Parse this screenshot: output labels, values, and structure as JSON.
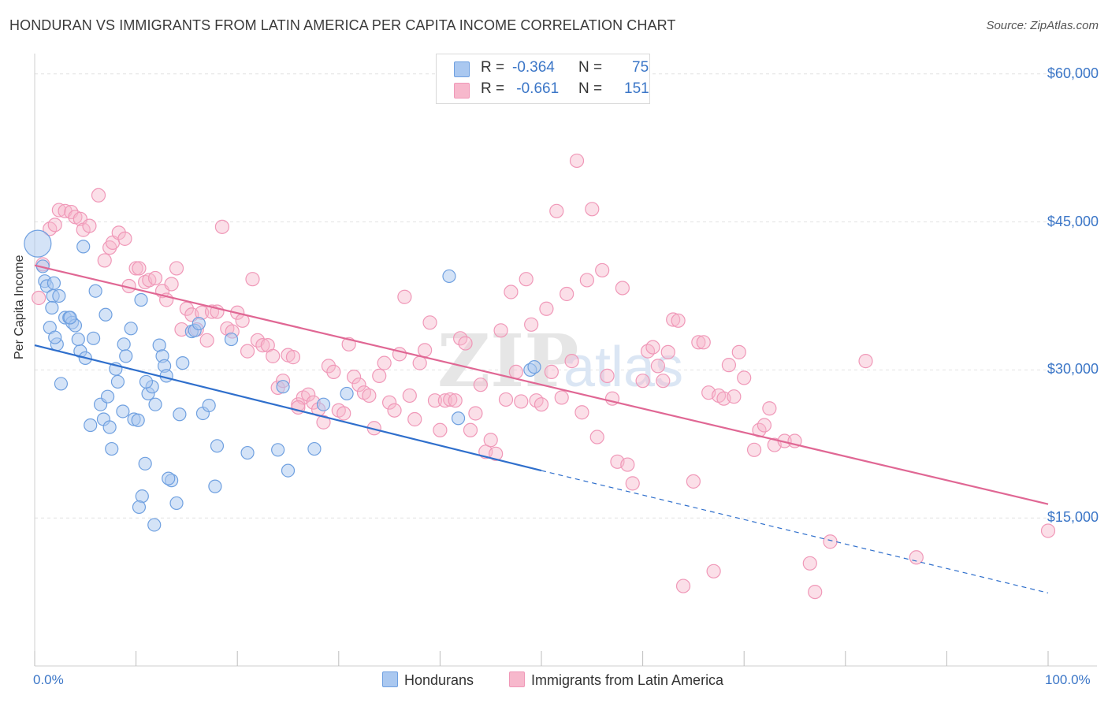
{
  "title": "HONDURAN VS IMMIGRANTS FROM LATIN AMERICA PER CAPITA INCOME CORRELATION CHART",
  "source": "Source: ZipAtlas.com",
  "watermark": "ZIPatlas",
  "legend_box": {
    "rows": [
      {
        "r_label": "R = ",
        "r_value": "-0.364",
        "n_label": "N = ",
        "n_value": "75",
        "color": "#aac8f0"
      },
      {
        "r_label": "R = ",
        "r_value": " -0.661",
        "n_label": "N = ",
        "n_value": "151",
        "color": "#f7b8cc"
      }
    ]
  },
  "bottom_legend": [
    {
      "label": "Hondurans",
      "color": "#aac8f0"
    },
    {
      "label": "Immigrants from Latin America",
      "color": "#f7b8cc"
    }
  ],
  "chart_data": {
    "type": "scatter",
    "title": "HONDURAN VS IMMIGRANTS FROM LATIN AMERICA PER CAPITA INCOME CORRELATION CHART",
    "xlabel": "",
    "ylabel": "Per Capita Income",
    "x_tick_labels": [
      "0.0%",
      "100.0%"
    ],
    "y_tick_labels": [
      "$15,000",
      "$30,000",
      "$45,000",
      "$60,000"
    ],
    "y_ticks": [
      15000,
      30000,
      45000,
      60000
    ],
    "xlim": [
      0,
      100
    ],
    "ylim": [
      0,
      61500
    ],
    "grid": true,
    "legend_position": "top-center",
    "series": [
      {
        "name": "Hondurans",
        "color": "#6fa0e0",
        "line_color": "#2f6fcc",
        "trend": {
          "x0": 0,
          "y0": 32500,
          "x1": 50,
          "y1": 19800,
          "dash_to_x": 100,
          "dash_to_y": 7400
        },
        "points": [
          [
            0.3,
            42800
          ],
          [
            0.8,
            40500
          ],
          [
            1.0,
            39000
          ],
          [
            1.2,
            38500
          ],
          [
            1.8,
            37500
          ],
          [
            1.7,
            36300
          ],
          [
            2.4,
            37500
          ],
          [
            1.5,
            34300
          ],
          [
            2.2,
            32600
          ],
          [
            2.0,
            33300
          ],
          [
            3.0,
            35300
          ],
          [
            3.4,
            35300
          ],
          [
            3.7,
            34800
          ],
          [
            4.0,
            34500
          ],
          [
            4.5,
            31900
          ],
          [
            4.3,
            33100
          ],
          [
            5.0,
            31200
          ],
          [
            5.8,
            33200
          ],
          [
            6.0,
            38000
          ],
          [
            7.0,
            35600
          ],
          [
            4.8,
            42500
          ],
          [
            2.6,
            28600
          ],
          [
            6.5,
            26500
          ],
          [
            6.8,
            25000
          ],
          [
            7.2,
            27300
          ],
          [
            8.0,
            30100
          ],
          [
            8.2,
            28800
          ],
          [
            8.7,
            25800
          ],
          [
            8.8,
            32600
          ],
          [
            9.0,
            31400
          ],
          [
            9.5,
            34200
          ],
          [
            9.8,
            25000
          ],
          [
            10.2,
            24900
          ],
          [
            10.5,
            37100
          ],
          [
            11.2,
            27600
          ],
          [
            11.6,
            28300
          ],
          [
            11.9,
            26500
          ],
          [
            12.3,
            32500
          ],
          [
            12.6,
            31400
          ],
          [
            12.8,
            30400
          ],
          [
            13.0,
            29400
          ],
          [
            13.5,
            18800
          ],
          [
            13.2,
            19000
          ],
          [
            14.0,
            16500
          ],
          [
            14.3,
            25500
          ],
          [
            14.6,
            30700
          ],
          [
            15.5,
            33900
          ],
          [
            15.8,
            34000
          ],
          [
            16.2,
            34700
          ],
          [
            16.6,
            25600
          ],
          [
            17.2,
            26400
          ],
          [
            17.8,
            18200
          ],
          [
            18.0,
            22300
          ],
          [
            19.4,
            33100
          ],
          [
            21.0,
            21600
          ],
          [
            24.0,
            21900
          ],
          [
            25.0,
            19800
          ],
          [
            24.5,
            28300
          ],
          [
            27.6,
            22000
          ],
          [
            30.8,
            27600
          ],
          [
            28.5,
            26500
          ],
          [
            40.9,
            39500
          ],
          [
            41.8,
            25100
          ],
          [
            48.9,
            30000
          ],
          [
            49.3,
            30300
          ],
          [
            10.9,
            20500
          ],
          [
            10.6,
            17200
          ],
          [
            10.3,
            16100
          ],
          [
            11.8,
            14300
          ],
          [
            7.6,
            22000
          ],
          [
            5.5,
            24400
          ],
          [
            7.4,
            24200
          ],
          [
            11.0,
            28800
          ],
          [
            3.5,
            35300
          ],
          [
            1.9,
            38800
          ]
        ],
        "big_point_index": 0
      },
      {
        "name": "Immigrants from Latin America",
        "color": "#f098b8",
        "line_color": "#e06794",
        "trend": {
          "x0": 0,
          "y0": 40600,
          "x1": 100,
          "y1": 16400
        },
        "points": [
          [
            0.4,
            37300
          ],
          [
            0.8,
            40700
          ],
          [
            1.5,
            44300
          ],
          [
            2.0,
            44700
          ],
          [
            2.4,
            46200
          ],
          [
            3.0,
            46100
          ],
          [
            3.6,
            46000
          ],
          [
            4.0,
            45500
          ],
          [
            4.5,
            45300
          ],
          [
            4.8,
            44200
          ],
          [
            5.4,
            44600
          ],
          [
            6.3,
            47700
          ],
          [
            6.9,
            41100
          ],
          [
            7.4,
            42400
          ],
          [
            7.7,
            42900
          ],
          [
            8.3,
            43900
          ],
          [
            8.9,
            43300
          ],
          [
            9.3,
            38500
          ],
          [
            10.0,
            40300
          ],
          [
            10.3,
            40300
          ],
          [
            10.9,
            38900
          ],
          [
            11.3,
            39100
          ],
          [
            11.9,
            39300
          ],
          [
            12.6,
            38000
          ],
          [
            13.0,
            37100
          ],
          [
            13.5,
            38700
          ],
          [
            14.0,
            40300
          ],
          [
            14.5,
            34100
          ],
          [
            15.0,
            36200
          ],
          [
            15.5,
            35600
          ],
          [
            16.0,
            34100
          ],
          [
            16.5,
            35800
          ],
          [
            17.0,
            33000
          ],
          [
            17.5,
            35900
          ],
          [
            18.0,
            35900
          ],
          [
            18.5,
            44500
          ],
          [
            19.0,
            34200
          ],
          [
            19.5,
            33900
          ],
          [
            20.0,
            35800
          ],
          [
            20.5,
            35000
          ],
          [
            21.0,
            31900
          ],
          [
            21.5,
            39200
          ],
          [
            22.0,
            33000
          ],
          [
            22.5,
            32500
          ],
          [
            23.0,
            32500
          ],
          [
            23.5,
            31400
          ],
          [
            24.0,
            28200
          ],
          [
            24.5,
            28900
          ],
          [
            25.0,
            31500
          ],
          [
            25.5,
            31300
          ],
          [
            26.0,
            26500
          ],
          [
            26.5,
            27200
          ],
          [
            27.0,
            27500
          ],
          [
            27.5,
            26700
          ],
          [
            28.0,
            26000
          ],
          [
            28.5,
            24700
          ],
          [
            29.0,
            30400
          ],
          [
            29.5,
            29800
          ],
          [
            30.0,
            25900
          ],
          [
            30.5,
            25600
          ],
          [
            31.0,
            32600
          ],
          [
            31.5,
            29300
          ],
          [
            32.0,
            28500
          ],
          [
            32.5,
            27700
          ],
          [
            33.0,
            27400
          ],
          [
            33.5,
            24100
          ],
          [
            34.0,
            29400
          ],
          [
            34.5,
            30700
          ],
          [
            35.0,
            26700
          ],
          [
            35.5,
            25900
          ],
          [
            36.0,
            31600
          ],
          [
            36.5,
            37400
          ],
          [
            37.0,
            27400
          ],
          [
            37.5,
            25000
          ],
          [
            38.0,
            30700
          ],
          [
            38.5,
            32000
          ],
          [
            39.0,
            34800
          ],
          [
            39.5,
            26900
          ],
          [
            40.0,
            23900
          ],
          [
            40.5,
            26900
          ],
          [
            41.0,
            27000
          ],
          [
            41.5,
            26900
          ],
          [
            42.0,
            33200
          ],
          [
            42.5,
            32700
          ],
          [
            43.0,
            23900
          ],
          [
            43.5,
            25600
          ],
          [
            44.0,
            28500
          ],
          [
            44.5,
            21700
          ],
          [
            45.0,
            22900
          ],
          [
            45.5,
            21500
          ],
          [
            46.0,
            34000
          ],
          [
            46.5,
            27000
          ],
          [
            47.0,
            37900
          ],
          [
            47.5,
            29800
          ],
          [
            48.0,
            26800
          ],
          [
            48.5,
            39200
          ],
          [
            49.0,
            34600
          ],
          [
            49.5,
            26900
          ],
          [
            50.0,
            26500
          ],
          [
            50.5,
            36200
          ],
          [
            51.0,
            29800
          ],
          [
            51.5,
            46100
          ],
          [
            52.0,
            27200
          ],
          [
            52.5,
            37700
          ],
          [
            53.0,
            30900
          ],
          [
            53.5,
            51200
          ],
          [
            54.0,
            25700
          ],
          [
            54.5,
            39100
          ],
          [
            55.0,
            46300
          ],
          [
            55.5,
            23200
          ],
          [
            56.0,
            40100
          ],
          [
            56.5,
            29400
          ],
          [
            57.0,
            27100
          ],
          [
            57.5,
            20700
          ],
          [
            58.0,
            38300
          ],
          [
            58.5,
            20400
          ],
          [
            59.0,
            18500
          ],
          [
            60.0,
            28900
          ],
          [
            60.5,
            31900
          ],
          [
            61.0,
            32300
          ],
          [
            61.5,
            30400
          ],
          [
            62.0,
            28900
          ],
          [
            62.5,
            31800
          ],
          [
            63.0,
            35100
          ],
          [
            63.5,
            35000
          ],
          [
            64.0,
            8100
          ],
          [
            65.0,
            18700
          ],
          [
            65.5,
            32800
          ],
          [
            66.0,
            32800
          ],
          [
            66.5,
            27700
          ],
          [
            67.0,
            9600
          ],
          [
            67.5,
            27400
          ],
          [
            68.0,
            27100
          ],
          [
            68.5,
            30500
          ],
          [
            69.0,
            27300
          ],
          [
            69.5,
            31800
          ],
          [
            70.0,
            29200
          ],
          [
            71.0,
            21900
          ],
          [
            71.5,
            23900
          ],
          [
            72.0,
            24400
          ],
          [
            72.5,
            26100
          ],
          [
            73.0,
            22400
          ],
          [
            74.0,
            22800
          ],
          [
            75.0,
            22800
          ],
          [
            76.5,
            10400
          ],
          [
            77.0,
            7500
          ],
          [
            78.5,
            12600
          ],
          [
            82.0,
            30900
          ],
          [
            87.0,
            11000
          ],
          [
            100.0,
            13700
          ],
          [
            26.0,
            26200
          ]
        ]
      }
    ]
  }
}
